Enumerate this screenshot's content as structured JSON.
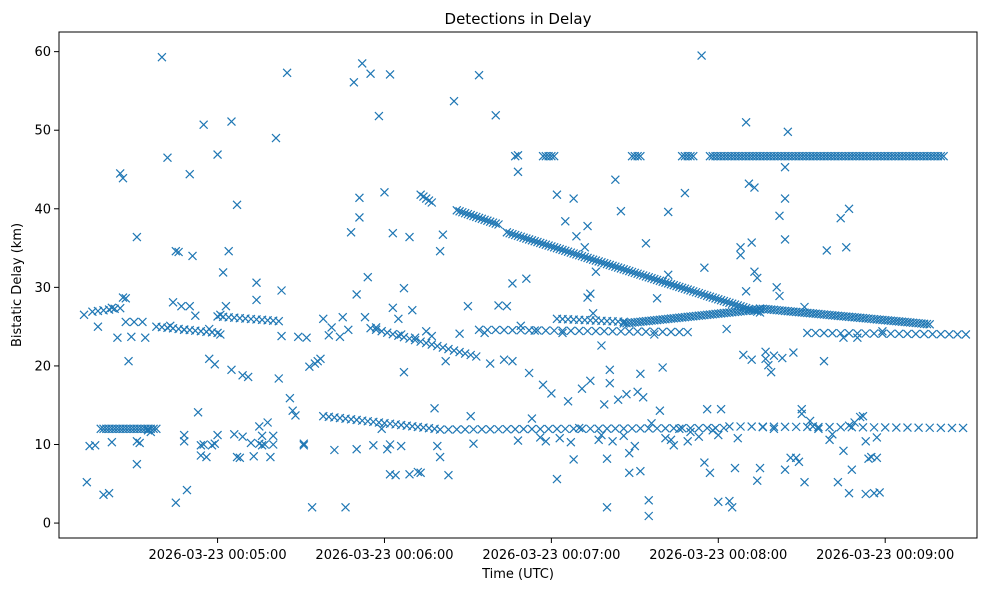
{
  "chart_data": {
    "type": "scatter",
    "title": "Detections in Delay",
    "xlabel": "Time (UTC)",
    "ylabel": "Bistatic Delay (km)",
    "marker": "x",
    "color": "#1f77b4",
    "grid": false,
    "x_unit": "seconds since 2026-03-23 00:00:00",
    "xlim": [
      243,
      573
    ],
    "ylim": [
      -1.9,
      62.5
    ],
    "x_ticks": [
      {
        "value": 300,
        "label": "2026-03-23 00:05:00"
      },
      {
        "value": 360,
        "label": "2026-03-23 00:06:00"
      },
      {
        "value": 420,
        "label": "2026-03-23 00:07:00"
      },
      {
        "value": 480,
        "label": "2026-03-23 00:08:00"
      },
      {
        "value": 540,
        "label": "2026-03-23 00:09:00"
      }
    ],
    "y_ticks": [
      {
        "value": 0,
        "label": "0"
      },
      {
        "value": 10,
        "label": "10"
      },
      {
        "value": 20,
        "label": "20"
      },
      {
        "value": 30,
        "label": "30"
      },
      {
        "value": 40,
        "label": "40"
      },
      {
        "value": 50,
        "label": "50"
      },
      {
        "value": 60,
        "label": "60"
      }
    ],
    "tracks": [
      {
        "name": "band-46.7",
        "x_start": 477,
        "x_end": 561,
        "y_start": 46.7,
        "y_end": 46.7,
        "step": 1
      },
      {
        "name": "band-46.7-a",
        "x_start": 417,
        "x_end": 421,
        "y_start": 46.7,
        "y_end": 46.7,
        "step": 1
      },
      {
        "name": "band-46.7-b",
        "x_start": 449,
        "x_end": 452,
        "y_start": 46.7,
        "y_end": 46.7,
        "step": 1
      },
      {
        "name": "band-46.7-c",
        "x_start": 467,
        "x_end": 471,
        "y_start": 46.7,
        "y_end": 46.7,
        "step": 1
      },
      {
        "name": "descending-41",
        "x_start": 373,
        "x_end": 377,
        "y_start": 41.8,
        "y_end": 40.8,
        "step": 1
      },
      {
        "name": "descending-39",
        "x_start": 386,
        "x_end": 401,
        "y_start": 39.8,
        "y_end": 38.0,
        "step": 1
      },
      {
        "name": "descending-37",
        "x_start": 404,
        "x_end": 495,
        "y_start": 37.0,
        "y_end": 26.8,
        "step": 1
      },
      {
        "name": "descending-27",
        "x_start": 495,
        "x_end": 556,
        "y_start": 27.3,
        "y_end": 25.3,
        "step": 1
      },
      {
        "name": "ascending-25",
        "x_start": 446,
        "x_end": 495,
        "y_start": 25.4,
        "y_end": 27.2,
        "step": 1
      },
      {
        "name": "band-26",
        "x_start": 422,
        "x_end": 447,
        "y_start": 26.0,
        "y_end": 25.6,
        "step": 2
      },
      {
        "name": "cluster-24",
        "x_start": 278,
        "x_end": 300,
        "y_start": 25.0,
        "y_end": 24.2,
        "step": 2
      },
      {
        "name": "cluster-26",
        "x_start": 300,
        "x_end": 322,
        "y_start": 26.3,
        "y_end": 25.7,
        "step": 2
      },
      {
        "name": "descending-24",
        "x_start": 355,
        "x_end": 393,
        "y_start": 24.8,
        "y_end": 21.2,
        "step": 2
      },
      {
        "name": "band-24",
        "x_start": 394,
        "x_end": 470,
        "y_start": 24.6,
        "y_end": 24.3,
        "step": 3
      },
      {
        "name": "band-24-late",
        "x_start": 512,
        "x_end": 570,
        "y_start": 24.2,
        "y_end": 24.0,
        "step": 3
      },
      {
        "name": "band-27",
        "x_start": 255,
        "x_end": 266,
        "y_start": 26.9,
        "y_end": 27.4,
        "step": 2
      },
      {
        "name": "band-12",
        "x_start": 258,
        "x_end": 278,
        "y_start": 12.0,
        "y_end": 12.0,
        "step": 1
      },
      {
        "name": "descending-13",
        "x_start": 338,
        "x_end": 378,
        "y_start": 13.6,
        "y_end": 12.0,
        "step": 2
      },
      {
        "name": "band-12-mid",
        "x_start": 380,
        "x_end": 482,
        "y_start": 11.9,
        "y_end": 12.1,
        "step": 3
      },
      {
        "name": "band-12-late",
        "x_start": 484,
        "x_end": 570,
        "y_start": 12.3,
        "y_end": 12.1,
        "step": 4
      }
    ],
    "points": [
      [
        252,
        26.5
      ],
      [
        253,
        5.2
      ],
      [
        254,
        9.8
      ],
      [
        256,
        9.9
      ],
      [
        257,
        25.0
      ],
      [
        259,
        3.6
      ],
      [
        261,
        3.8
      ],
      [
        262,
        10.3
      ],
      [
        262,
        27.4
      ],
      [
        264,
        23.6
      ],
      [
        265,
        44.5
      ],
      [
        266,
        43.9
      ],
      [
        266,
        28.7
      ],
      [
        267,
        28.6
      ],
      [
        267,
        25.6
      ],
      [
        268,
        20.6
      ],
      [
        269,
        23.7
      ],
      [
        270,
        25.6
      ],
      [
        271,
        7.5
      ],
      [
        271,
        10.4
      ],
      [
        271,
        36.4
      ],
      [
        272,
        10.2
      ],
      [
        273,
        25.6
      ],
      [
        274,
        23.6
      ],
      [
        275,
        11.8
      ],
      [
        276,
        11.6
      ],
      [
        280,
        59.3
      ],
      [
        282,
        46.5
      ],
      [
        283,
        25.1
      ],
      [
        284,
        28.1
      ],
      [
        285,
        2.6
      ],
      [
        285,
        34.6
      ],
      [
        286,
        34.5
      ],
      [
        287,
        27.6
      ],
      [
        288,
        24.6
      ],
      [
        288,
        11.2
      ],
      [
        288,
        10.4
      ],
      [
        289,
        4.2
      ],
      [
        290,
        44.4
      ],
      [
        290,
        27.6
      ],
      [
        291,
        34.0
      ],
      [
        292,
        26.4
      ],
      [
        293,
        14.1
      ],
      [
        294,
        8.6
      ],
      [
        294,
        9.9
      ],
      [
        295,
        10.0
      ],
      [
        295,
        50.7
      ],
      [
        296,
        8.4
      ],
      [
        297,
        24.7
      ],
      [
        297,
        20.9
      ],
      [
        298,
        9.9
      ],
      [
        299,
        10.1
      ],
      [
        299,
        20.2
      ],
      [
        300,
        46.9
      ],
      [
        300,
        11.2
      ],
      [
        301,
        24.0
      ],
      [
        301,
        26.5
      ],
      [
        302,
        31.9
      ],
      [
        303,
        27.6
      ],
      [
        304,
        34.6
      ],
      [
        305,
        19.5
      ],
      [
        305,
        51.1
      ],
      [
        306,
        11.3
      ],
      [
        307,
        40.5
      ],
      [
        307,
        8.4
      ],
      [
        308,
        8.3
      ],
      [
        309,
        11.0
      ],
      [
        309,
        18.8
      ],
      [
        311,
        18.6
      ],
      [
        312,
        10.2
      ],
      [
        313,
        8.5
      ],
      [
        314,
        30.6
      ],
      [
        314,
        28.4
      ],
      [
        315,
        10.1
      ],
      [
        315,
        12.3
      ],
      [
        316,
        11.1
      ],
      [
        316,
        9.9
      ],
      [
        317,
        10.0
      ],
      [
        318,
        12.8
      ],
      [
        319,
        8.4
      ],
      [
        320,
        11.1
      ],
      [
        320,
        10.0
      ],
      [
        321,
        49.0
      ],
      [
        322,
        18.4
      ],
      [
        323,
        29.6
      ],
      [
        323,
        23.8
      ],
      [
        325,
        57.3
      ],
      [
        326,
        15.9
      ],
      [
        327,
        14.3
      ],
      [
        328,
        13.7
      ],
      [
        329,
        23.7
      ],
      [
        331,
        10.1
      ],
      [
        331,
        9.9
      ],
      [
        332,
        23.6
      ],
      [
        333,
        19.9
      ],
      [
        334,
        2.0
      ],
      [
        335,
        20.3
      ],
      [
        336,
        20.6
      ],
      [
        337,
        20.9
      ],
      [
        338,
        26.0
      ],
      [
        340,
        23.9
      ],
      [
        341,
        24.9
      ],
      [
        342,
        9.3
      ],
      [
        344,
        23.7
      ],
      [
        345,
        26.2
      ],
      [
        346,
        2.0
      ],
      [
        347,
        24.6
      ],
      [
        348,
        37.0
      ],
      [
        349,
        56.1
      ],
      [
        350,
        9.4
      ],
      [
        350,
        29.1
      ],
      [
        351,
        38.9
      ],
      [
        351,
        41.4
      ],
      [
        352,
        58.5
      ],
      [
        353,
        26.2
      ],
      [
        354,
        31.3
      ],
      [
        355,
        57.2
      ],
      [
        356,
        9.9
      ],
      [
        357,
        24.9
      ],
      [
        358,
        51.8
      ],
      [
        359,
        12.0
      ],
      [
        360,
        42.1
      ],
      [
        361,
        9.4
      ],
      [
        362,
        10.0
      ],
      [
        362,
        57.1
      ],
      [
        362,
        6.2
      ],
      [
        363,
        36.9
      ],
      [
        363,
        27.4
      ],
      [
        364,
        6.1
      ],
      [
        365,
        26.0
      ],
      [
        366,
        9.8
      ],
      [
        366,
        24.0
      ],
      [
        367,
        19.2
      ],
      [
        367,
        29.9
      ],
      [
        369,
        6.2
      ],
      [
        369,
        36.4
      ],
      [
        370,
        27.1
      ],
      [
        371,
        23.6
      ],
      [
        372,
        6.5
      ],
      [
        373,
        6.4
      ],
      [
        375,
        24.4
      ],
      [
        377,
        23.8
      ],
      [
        378,
        14.6
      ],
      [
        379,
        9.8
      ],
      [
        380,
        8.4
      ],
      [
        380,
        34.6
      ],
      [
        381,
        36.7
      ],
      [
        382,
        20.6
      ],
      [
        383,
        6.1
      ],
      [
        385,
        53.7
      ],
      [
        387,
        24.1
      ],
      [
        390,
        27.6
      ],
      [
        391,
        13.6
      ],
      [
        392,
        10.1
      ],
      [
        394,
        57.0
      ],
      [
        396,
        24.2
      ],
      [
        398,
        20.3
      ],
      [
        400,
        51.9
      ],
      [
        401,
        27.7
      ],
      [
        403,
        20.8
      ],
      [
        404,
        27.6
      ],
      [
        406,
        30.5
      ],
      [
        406,
        20.6
      ],
      [
        407,
        46.7
      ],
      [
        408,
        44.7
      ],
      [
        408,
        46.8
      ],
      [
        408,
        10.5
      ],
      [
        409,
        25.1
      ],
      [
        411,
        31.1
      ],
      [
        412,
        19.1
      ],
      [
        413,
        13.3
      ],
      [
        414,
        24.5
      ],
      [
        416,
        10.9
      ],
      [
        417,
        17.6
      ],
      [
        418,
        10.4
      ],
      [
        420,
        16.5
      ],
      [
        422,
        5.6
      ],
      [
        422,
        41.8
      ],
      [
        423,
        10.8
      ],
      [
        424,
        24.2
      ],
      [
        425,
        38.4
      ],
      [
        426,
        15.5
      ],
      [
        427,
        10.3
      ],
      [
        428,
        41.3
      ],
      [
        428,
        8.1
      ],
      [
        429,
        36.5
      ],
      [
        430,
        12.1
      ],
      [
        431,
        17.1
      ],
      [
        432,
        35.1
      ],
      [
        433,
        37.8
      ],
      [
        433,
        28.7
      ],
      [
        434,
        29.2
      ],
      [
        434,
        18.1
      ],
      [
        435,
        26.7
      ],
      [
        436,
        32.0
      ],
      [
        437,
        10.6
      ],
      [
        438,
        22.6
      ],
      [
        438,
        11.2
      ],
      [
        439,
        15.1
      ],
      [
        440,
        2.0
      ],
      [
        440,
        8.2
      ],
      [
        441,
        19.5
      ],
      [
        441,
        17.8
      ],
      [
        442,
        10.4
      ],
      [
        443,
        43.7
      ],
      [
        444,
        15.7
      ],
      [
        445,
        39.7
      ],
      [
        446,
        11.1
      ],
      [
        447,
        16.4
      ],
      [
        448,
        6.4
      ],
      [
        448,
        8.9
      ],
      [
        450,
        9.8
      ],
      [
        451,
        16.7
      ],
      [
        452,
        6.6
      ],
      [
        452,
        19.0
      ],
      [
        453,
        16.0
      ],
      [
        454,
        35.6
      ],
      [
        455,
        0.9
      ],
      [
        455,
        2.9
      ],
      [
        456,
        12.7
      ],
      [
        457,
        24.0
      ],
      [
        458,
        28.6
      ],
      [
        459,
        14.3
      ],
      [
        460,
        19.8
      ],
      [
        461,
        10.8
      ],
      [
        462,
        31.6
      ],
      [
        462,
        39.6
      ],
      [
        463,
        10.6
      ],
      [
        464,
        9.9
      ],
      [
        466,
        12.0
      ],
      [
        468,
        42.0
      ],
      [
        469,
        10.4
      ],
      [
        470,
        11.6
      ],
      [
        473,
        11.0
      ],
      [
        474,
        59.5
      ],
      [
        475,
        32.5
      ],
      [
        475,
        7.7
      ],
      [
        476,
        14.5
      ],
      [
        477,
        6.4
      ],
      [
        478,
        11.8
      ],
      [
        480,
        2.7
      ],
      [
        480,
        11.2
      ],
      [
        481,
        14.5
      ],
      [
        483,
        24.7
      ],
      [
        484,
        2.8
      ],
      [
        485,
        2.0
      ],
      [
        486,
        7.0
      ],
      [
        487,
        10.8
      ],
      [
        488,
        35.1
      ],
      [
        488,
        34.1
      ],
      [
        489,
        21.4
      ],
      [
        490,
        29.5
      ],
      [
        490,
        51.0
      ],
      [
        491,
        43.2
      ],
      [
        492,
        20.8
      ],
      [
        492,
        35.7
      ],
      [
        493,
        42.7
      ],
      [
        493,
        32.0
      ],
      [
        494,
        5.4
      ],
      [
        494,
        31.2
      ],
      [
        495,
        7.0
      ],
      [
        496,
        12.2
      ],
      [
        497,
        21.8
      ],
      [
        497,
        20.9
      ],
      [
        498,
        20.1
      ],
      [
        499,
        19.2
      ],
      [
        500,
        12.0
      ],
      [
        500,
        21.3
      ],
      [
        501,
        30.0
      ],
      [
        502,
        39.1
      ],
      [
        502,
        28.9
      ],
      [
        503,
        21.0
      ],
      [
        504,
        41.3
      ],
      [
        504,
        36.1
      ],
      [
        504,
        6.8
      ],
      [
        504,
        45.3
      ],
      [
        505,
        49.8
      ],
      [
        506,
        8.3
      ],
      [
        507,
        21.7
      ],
      [
        508,
        8.3
      ],
      [
        509,
        7.8
      ],
      [
        510,
        14.5
      ],
      [
        510,
        13.9
      ],
      [
        511,
        5.2
      ],
      [
        511,
        27.5
      ],
      [
        513,
        13.0
      ],
      [
        514,
        12.3
      ],
      [
        516,
        12.0
      ],
      [
        518,
        20.6
      ],
      [
        519,
        34.7
      ],
      [
        520,
        10.6
      ],
      [
        521,
        11.3
      ],
      [
        523,
        5.2
      ],
      [
        524,
        38.8
      ],
      [
        525,
        23.6
      ],
      [
        525,
        9.2
      ],
      [
        526,
        35.1
      ],
      [
        527,
        3.8
      ],
      [
        527,
        12.4
      ],
      [
        527,
        40.0
      ],
      [
        528,
        6.8
      ],
      [
        529,
        12.8
      ],
      [
        530,
        23.6
      ],
      [
        531,
        13.5
      ],
      [
        532,
        13.6
      ],
      [
        533,
        10.4
      ],
      [
        533,
        3.7
      ],
      [
        534,
        8.2
      ],
      [
        535,
        8.4
      ],
      [
        536,
        3.8
      ],
      [
        537,
        8.3
      ],
      [
        537,
        10.9
      ],
      [
        538,
        3.9
      ],
      [
        539,
        24.4
      ]
    ]
  }
}
